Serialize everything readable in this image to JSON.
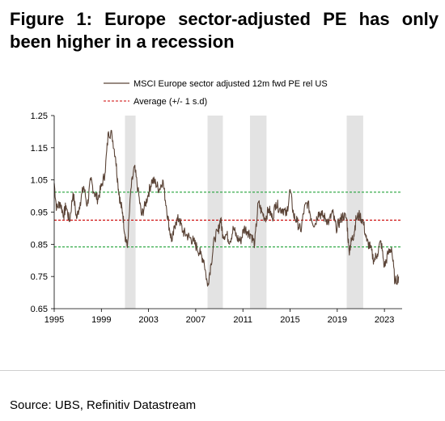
{
  "figure": {
    "title": "Figure 1: Europe sector-adjusted PE has only been higher in a recession",
    "source": "Source: UBS, Refinitiv Datastream"
  },
  "colors": {
    "series": "#5a4336",
    "average": "#cc0000",
    "band": "#22a33a",
    "recession": "#e3e3e3"
  },
  "chart_data": {
    "type": "line",
    "xlim": [
      1995,
      2024.5
    ],
    "ylim": [
      0.65,
      1.25
    ],
    "y_ticks": [
      "0.65",
      "0.75",
      "0.85",
      "0.95",
      "1.05",
      "1.15",
      "1.25"
    ],
    "x_ticks": [
      "1995",
      "1999",
      "2003",
      "2007",
      "2011",
      "2015",
      "2019",
      "2023"
    ],
    "grid": false,
    "legend_position": "top",
    "series": [
      {
        "name": "MSCI Europe sector adjusted 12m fwd PE rel US",
        "style": "solid",
        "x": [
          1995.0,
          1995.2,
          1995.5,
          1995.8,
          1996.0,
          1996.3,
          1996.6,
          1996.9,
          1997.2,
          1997.5,
          1997.8,
          1998.1,
          1998.4,
          1998.7,
          1999.0,
          1999.3,
          1999.6,
          1999.9,
          2000.2,
          2000.4,
          2000.6,
          2000.8,
          2001.0,
          2001.2,
          2001.5,
          2001.8,
          2002.1,
          2002.4,
          2002.7,
          2003.0,
          2003.3,
          2003.6,
          2003.9,
          2004.2,
          2004.5,
          2004.8,
          2005.0,
          2005.3,
          2005.6,
          2005.9,
          2006.2,
          2006.5,
          2006.8,
          2007.1,
          2007.4,
          2007.7,
          2008.0,
          2008.3,
          2008.6,
          2008.9,
          2009.1,
          2009.3,
          2009.6,
          2009.9,
          2010.2,
          2010.5,
          2010.8,
          2011.1,
          2011.4,
          2011.7,
          2012.0,
          2012.3,
          2012.6,
          2012.9,
          2013.2,
          2013.5,
          2013.8,
          2014.1,
          2014.4,
          2014.7,
          2015.0,
          2015.3,
          2015.6,
          2015.9,
          2016.2,
          2016.5,
          2016.8,
          2017.1,
          2017.4,
          2017.7,
          2018.0,
          2018.3,
          2018.6,
          2018.9,
          2019.2,
          2019.5,
          2019.8,
          2020.0,
          2020.2,
          2020.4,
          2020.6,
          2020.9,
          2021.2,
          2021.5,
          2021.8,
          2022.1,
          2022.4,
          2022.7,
          2023.0,
          2023.3,
          2023.6,
          2023.9,
          2024.2
        ],
        "values": [
          1.04,
          0.96,
          0.98,
          0.94,
          0.97,
          0.92,
          1.01,
          0.93,
          0.98,
          1.03,
          0.97,
          1.05,
          1.01,
          0.99,
          1.03,
          1.07,
          1.2,
          1.19,
          1.12,
          1.04,
          0.98,
          0.95,
          0.88,
          0.84,
          1.02,
          1.09,
          1.02,
          0.94,
          0.97,
          1.01,
          1.05,
          1.04,
          1.02,
          1.05,
          0.97,
          0.89,
          0.86,
          0.92,
          0.93,
          0.89,
          0.88,
          0.87,
          0.86,
          0.84,
          0.82,
          0.8,
          0.72,
          0.79,
          0.87,
          0.89,
          0.93,
          0.88,
          0.88,
          0.86,
          0.9,
          0.87,
          0.86,
          0.9,
          0.89,
          0.88,
          0.85,
          0.98,
          0.95,
          0.93,
          0.96,
          0.93,
          0.98,
          0.96,
          0.96,
          0.94,
          1.02,
          0.94,
          0.92,
          0.89,
          0.96,
          0.98,
          0.93,
          0.91,
          0.95,
          0.94,
          0.93,
          0.92,
          0.95,
          0.9,
          0.92,
          0.94,
          0.93,
          0.83,
          0.86,
          0.88,
          0.93,
          0.94,
          0.92,
          0.86,
          0.84,
          0.8,
          0.82,
          0.86,
          0.78,
          0.82,
          0.84,
          0.73,
          0.75
        ]
      },
      {
        "name": "Average (+/- 1 s.d)",
        "style": "dashed",
        "values": [
          0.925
        ]
      }
    ],
    "bands": [
      1.012,
      0.842
    ],
    "recessions": [
      [
        2001.0,
        2001.9
      ],
      [
        2008.0,
        2009.3
      ],
      [
        2011.6,
        2013.0
      ],
      [
        2019.8,
        2021.2
      ]
    ]
  }
}
